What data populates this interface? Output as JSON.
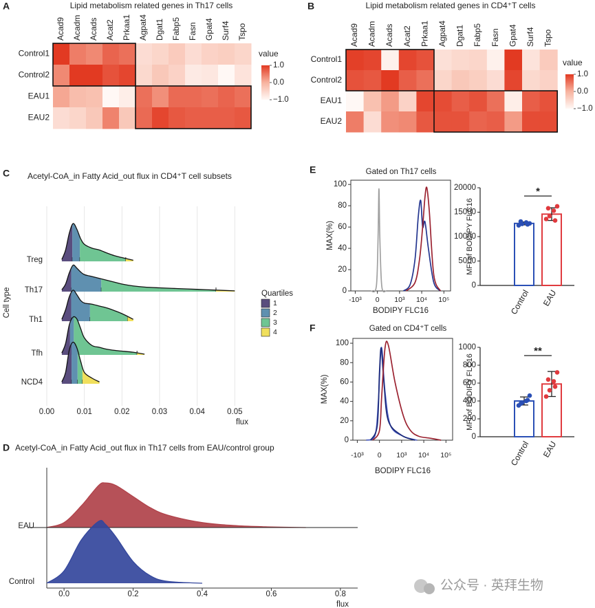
{
  "chart_data": [
    {
      "type": "heatmap",
      "panel": "A",
      "title": "Lipid metabolism related genes in Th17 cells",
      "columns": [
        "Acad9",
        "Acadm",
        "Acads",
        "Acat2",
        "Prkaa1",
        "Agpat4",
        "Dgat1",
        "Fabp5",
        "Fasn",
        "Gpat4",
        "Surf4",
        "Tspo"
      ],
      "rows": [
        "Control1",
        "Control2",
        "EAU1",
        "EAU2"
      ],
      "values": [
        [
          1.0,
          0.45,
          0.35,
          0.65,
          0.55,
          -0.6,
          -0.5,
          -0.35,
          -0.6,
          -0.45,
          -0.4,
          -0.5
        ],
        [
          0.35,
          1.0,
          1.0,
          0.8,
          0.9,
          -0.55,
          -0.3,
          -0.45,
          -0.8,
          -0.75,
          -1.0,
          -0.7
        ],
        [
          0.1,
          -0.15,
          -0.2,
          -1.0,
          -0.85,
          0.55,
          0.3,
          0.6,
          0.6,
          0.55,
          0.65,
          0.55
        ],
        [
          -0.6,
          -0.5,
          -0.3,
          0.4,
          -0.3,
          0.6,
          0.9,
          0.75,
          0.7,
          0.7,
          0.7,
          0.75
        ]
      ],
      "colorbar_title": "value",
      "clim": [
        -1,
        1
      ],
      "colorbar_ticks": [
        {
          "value": 1,
          "label": "1.0"
        },
        {
          "value": 0,
          "label": "0.0"
        },
        {
          "value": -1,
          "label": "−1.0"
        }
      ],
      "cmap": [
        "#fff8f5",
        "#f7b39f",
        "#e23a22"
      ]
    },
    {
      "type": "heatmap",
      "panel": "B",
      "title": "Lipid metabolism related genes in CD4⁺T cells",
      "columns": [
        "Acad9",
        "Acadm",
        "Acads",
        "Acat2",
        "Prkaa1",
        "Agpat4",
        "Dgat1",
        "Fabp5",
        "Fasn",
        "Gpat4",
        "Surf4",
        "Tspo"
      ],
      "rows": [
        "Control1",
        "Control2",
        "EAU1",
        "EAU2"
      ],
      "values": [
        [
          0.95,
          0.9,
          -0.9,
          0.9,
          0.8,
          -0.65,
          -0.55,
          -0.5,
          -0.9,
          1.0,
          -0.7,
          -0.35
        ],
        [
          0.8,
          0.75,
          1.0,
          0.7,
          0.55,
          -0.5,
          -0.3,
          -0.4,
          -0.6,
          0.9,
          -0.55,
          -0.45
        ],
        [
          -1.0,
          -0.2,
          0.2,
          -0.45,
          0.9,
          0.85,
          0.7,
          0.8,
          0.55,
          -0.85,
          0.7,
          0.8
        ],
        [
          0.45,
          -0.6,
          0.3,
          0.35,
          0.75,
          0.8,
          0.8,
          0.65,
          0.7,
          0.2,
          0.85,
          0.85
        ]
      ],
      "colorbar_title": "value",
      "clim": [
        -1,
        1
      ],
      "colorbar_ticks": [
        {
          "value": 1,
          "label": "1.0"
        },
        {
          "value": 0,
          "label": "0.0"
        },
        {
          "value": -1,
          "label": "−1.0"
        }
      ],
      "cmap": [
        "#fff8f5",
        "#f7b39f",
        "#e23a22"
      ]
    },
    {
      "type": "ridgeline",
      "panel": "C",
      "title": "Acetyl-CoA_in Fatty Acid_out flux in CD4⁺T cell subsets",
      "ylabel": "Cell type",
      "xlabel": "flux",
      "x": [
        0.004,
        0.005,
        0.006,
        0.007,
        0.008,
        0.009,
        0.01,
        0.012,
        0.014,
        0.016,
        0.018,
        0.02,
        0.023,
        0.026,
        0.03,
        0.035,
        0.04,
        0.045,
        0.05
      ],
      "categories": [
        "Treg",
        "Th17",
        "Th1",
        "Tfh",
        "NCD4"
      ],
      "densities": [
        [
          0.05,
          0.3,
          0.75,
          1.0,
          0.85,
          0.6,
          0.45,
          0.35,
          0.3,
          0.22,
          0.15,
          0.1,
          0.03,
          null,
          null,
          null,
          null,
          null,
          null
        ],
        [
          0.05,
          0.2,
          0.5,
          0.7,
          0.62,
          0.52,
          0.45,
          0.4,
          0.35,
          0.3,
          0.25,
          0.2,
          0.15,
          0.12,
          0.1,
          0.08,
          0.06,
          0.04,
          0.02
        ],
        [
          0.05,
          0.3,
          0.65,
          0.82,
          0.7,
          0.55,
          0.48,
          0.45,
          0.4,
          0.35,
          0.28,
          0.2,
          0.05,
          null,
          null,
          null,
          null,
          null,
          null
        ],
        [
          0.05,
          0.3,
          0.8,
          1.0,
          0.95,
          0.7,
          0.45,
          0.25,
          0.2,
          0.15,
          0.12,
          0.1,
          0.07,
          0.02,
          null,
          null,
          null,
          null,
          null
        ],
        [
          0.05,
          0.3,
          0.9,
          1.1,
          0.95,
          0.6,
          0.3,
          0.15,
          0.05,
          null,
          null,
          null,
          null,
          null,
          null,
          null,
          null,
          null,
          null
        ]
      ],
      "quartiles": [
        [
          0.0068,
          0.0088,
          0.021
        ],
        [
          0.0065,
          0.0145,
          0.045
        ],
        [
          0.0065,
          0.0115,
          0.0215
        ],
        [
          0.0062,
          0.0072,
          0.024
        ],
        [
          0.0066,
          0.0082,
          0.0095
        ]
      ],
      "legend_title": "Quartiles",
      "legend": [
        "1",
        "2",
        "3",
        "4"
      ],
      "legend_colors": [
        "#5a4d7e",
        "#5f90b0",
        "#6fc593",
        "#f0df5c"
      ],
      "xlim": [
        0,
        0.0525
      ],
      "xticks": [
        {
          "value": 0,
          "label": "0.00"
        },
        0.01,
        0.02,
        0.03,
        0.04,
        0.05
      ],
      "grid": true
    },
    {
      "type": "ridgeline",
      "panel": "D",
      "title": "Acetyl-CoA_in Fatty Acid_out flux in Th17 cells from EAU/control group",
      "xlabel": "flux",
      "x": [
        -0.05,
        0,
        0.05,
        0.1,
        0.12,
        0.15,
        0.2,
        0.25,
        0.3,
        0.4,
        0.5,
        0.6,
        0.7
      ],
      "categories": [
        "EAU",
        "Control"
      ],
      "densities": [
        [
          0,
          0.08,
          0.35,
          0.68,
          0.72,
          0.68,
          0.5,
          0.32,
          0.2,
          0.08,
          0.03,
          0.01,
          0
        ],
        [
          0,
          0.2,
          0.7,
          1.0,
          0.95,
          0.75,
          0.35,
          0.12,
          0.03,
          0,
          null,
          null,
          null
        ]
      ],
      "colors": [
        "#b0424a",
        "#34479c"
      ],
      "xlim": [
        -0.05,
        0.85
      ],
      "xticks": [
        {
          "value": 0,
          "label": "0.0"
        },
        0.2,
        0.4,
        0.6,
        0.8
      ],
      "grid": false
    },
    {
      "type": "flow",
      "panel": "E",
      "title": "Gated on Th17 cells",
      "ylabel": "MAX(%)",
      "xlabel": "BODIPY FLC16",
      "ylim": [
        0,
        104
      ],
      "yticks": [
        0,
        20,
        40,
        60,
        80,
        100
      ],
      "xlim": [
        -1200,
        200000
      ],
      "xticks": [
        {
          "value": -1000,
          "label": "-10³"
        },
        0,
        {
          "value": 1000,
          "label": "10³"
        },
        {
          "value": 10000,
          "label": "10⁴"
        },
        {
          "value": 100000,
          "label": "10⁵"
        }
      ],
      "series": [
        {
          "color": "#a0a0a0",
          "x": [
            -300,
            -50,
            30,
            70,
            110,
            200,
            400
          ],
          "values": [
            0,
            4,
            50,
            96,
            50,
            4,
            0
          ]
        },
        {
          "color": "#23358f",
          "x": [
            1500,
            3000,
            5000,
            7000,
            9000,
            11000,
            14000,
            20000,
            35000,
            70000
          ],
          "values": [
            0,
            6,
            30,
            70,
            85,
            60,
            65,
            40,
            8,
            0
          ]
        },
        {
          "color": "#9b2230",
          "x": [
            2000,
            5000,
            8000,
            11000,
            14000,
            17000,
            22000,
            35000,
            70000
          ],
          "values": [
            0,
            8,
            30,
            60,
            88,
            97,
            75,
            15,
            0
          ]
        }
      ]
    },
    {
      "type": "bar",
      "ylabel": "MFI of BODIPY FLC16",
      "categories": [
        "Control",
        "EAU"
      ],
      "values": [
        12700,
        14600
      ],
      "errors": [
        300,
        1300
      ],
      "points": [
        [
          12300,
          12600,
          12900,
          12700,
          13100,
          12500
        ],
        [
          13600,
          14200,
          15300,
          16200,
          15800,
          13300
        ]
      ],
      "colors": [
        "#2a4fb5",
        "#e03a3e"
      ],
      "ylim": [
        0,
        20000
      ],
      "yticks": [
        0,
        5000,
        10000,
        15000,
        20000
      ],
      "significance": "*"
    },
    {
      "type": "flow",
      "panel": "F",
      "title": "Gated on CD4⁺T cells",
      "ylabel": "MAX(%)",
      "xlabel": "BODIPY FLC16",
      "ylim": [
        0,
        105
      ],
      "yticks": [
        0,
        20,
        40,
        60,
        80,
        100
      ],
      "xlim": [
        -1200,
        200000
      ],
      "xticks": [
        {
          "value": -1000,
          "label": "-10³"
        },
        0,
        {
          "value": 1000,
          "label": "10³"
        },
        {
          "value": 10000,
          "label": "10⁴"
        },
        {
          "value": 100000,
          "label": "10⁵"
        }
      ],
      "series": [
        {
          "color": "#4a5cc0",
          "x": [
            -600,
            -200,
            -50,
            50,
            120,
            250,
            500,
            1200,
            5000
          ],
          "values": [
            0,
            5,
            40,
            88,
            92,
            50,
            15,
            4,
            0
          ]
        },
        {
          "color": "#1c2a7a",
          "x": [
            -400,
            -100,
            0,
            80,
            200,
            400,
            1000,
            4000
          ],
          "values": [
            0,
            15,
            70,
            95,
            60,
            20,
            5,
            0
          ]
        },
        {
          "color": "#9b2230",
          "x": [
            -300,
            0,
            100,
            250,
            400,
            700,
            1200,
            2500,
            6000,
            20000,
            60000
          ],
          "values": [
            0,
            10,
            45,
            95,
            98,
            60,
            25,
            10,
            4,
            2,
            0
          ]
        }
      ]
    },
    {
      "type": "bar",
      "ylabel": "MFI of BODIPY FLC16",
      "categories": [
        "Control",
        "EAU"
      ],
      "values": [
        400,
        590
      ],
      "errors": [
        45,
        140
      ],
      "points": [
        [
          350,
          380,
          400,
          460,
          370,
          410
        ],
        [
          450,
          520,
          620,
          720,
          640,
          560
        ]
      ],
      "colors": [
        "#2a4fb5",
        "#e03a3e"
      ],
      "ylim": [
        0,
        1000
      ],
      "yticks": [
        0,
        200,
        400,
        600,
        800,
        1000
      ],
      "significance": "**"
    }
  ],
  "watermark": "公众号 · 英拜生物"
}
